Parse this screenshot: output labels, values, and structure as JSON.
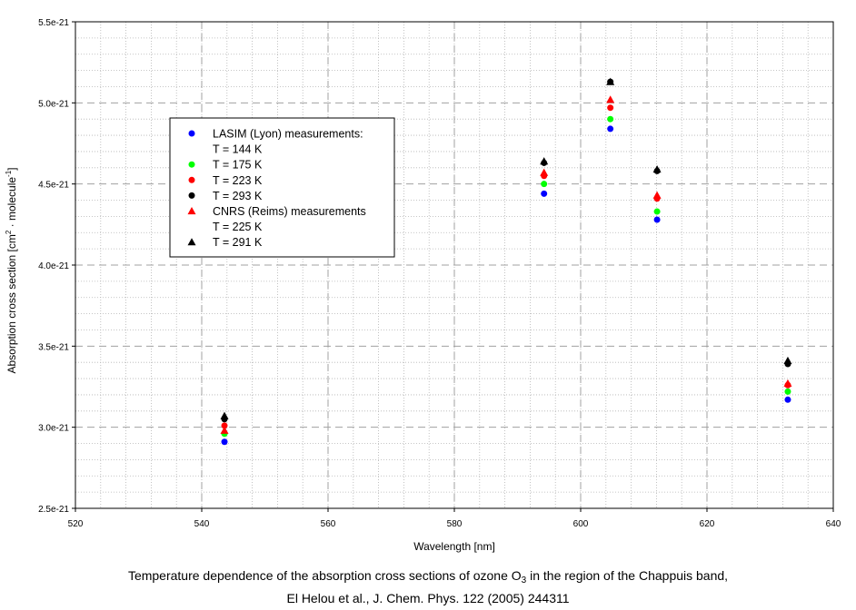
{
  "chart_data": {
    "type": "scatter",
    "title": "",
    "xlabel": "Wavelength [nm]",
    "ylabel_parts": [
      "Absorption cross section [cm",
      "2",
      " · molecule",
      "-1",
      "]"
    ],
    "xlim": [
      520,
      640
    ],
    "ylim": [
      2.5e-21,
      5.5e-21
    ],
    "x_ticks": [
      520,
      540,
      560,
      580,
      600,
      620,
      640
    ],
    "x_tick_labels": [
      "520",
      "540",
      "560",
      "580",
      "600",
      "620",
      "640"
    ],
    "y_ticks": [
      2.5e-21,
      3e-21,
      3.5e-21,
      4e-21,
      4.5e-21,
      5e-21,
      5.5e-21
    ],
    "y_tick_labels": [
      "2.5e-21",
      "3.0e-21",
      "3.5e-21",
      "4.0e-21",
      "4.5e-21",
      "5.0e-21",
      "5.5e-21"
    ],
    "grid": true,
    "legend_position": "upper-left",
    "legend_lines": [
      {
        "text": "LASIM (Lyon) measurements:",
        "series": 0
      },
      {
        "text": "T = 144 K",
        "series": -1
      },
      {
        "text": "T = 175 K",
        "series": 1
      },
      {
        "text": "T = 223 K",
        "series": 2
      },
      {
        "text": "T = 293 K",
        "series": 3
      },
      {
        "text": "CNRS (Reims) measurements",
        "series": 4
      },
      {
        "text": "T = 225 K",
        "series": -1
      },
      {
        "text": "T = 291 K",
        "series": 5
      }
    ],
    "series": [
      {
        "name": "T = 144 K",
        "group": "LASIM (Lyon) measurements",
        "marker": "circle",
        "color": "#0000ff",
        "x": [
          543.6,
          594.2,
          604.7,
          612.1,
          632.8
        ],
        "y": [
          2.91e-21,
          4.44e-21,
          4.84e-21,
          4.28e-21,
          3.17e-21
        ]
      },
      {
        "name": "T = 175 K",
        "group": "LASIM (Lyon) measurements",
        "marker": "circle",
        "color": "#00ff00",
        "x": [
          543.6,
          594.2,
          604.7,
          612.1,
          632.8
        ],
        "y": [
          2.96e-21,
          4.5e-21,
          4.9e-21,
          4.33e-21,
          3.22e-21
        ]
      },
      {
        "name": "T = 223 K",
        "group": "LASIM (Lyon) measurements",
        "marker": "circle",
        "color": "#ff0000",
        "x": [
          543.6,
          594.2,
          604.7,
          612.1,
          632.8
        ],
        "y": [
          3.01e-21,
          4.55e-21,
          4.97e-21,
          4.41e-21,
          3.26e-21
        ]
      },
      {
        "name": "T = 293 K",
        "group": "LASIM (Lyon) measurements",
        "marker": "circle",
        "color": "#000000",
        "x": [
          543.6,
          594.2,
          604.7,
          612.1,
          632.8
        ],
        "y": [
          3.05e-21,
          4.63e-21,
          5.13e-21,
          4.58e-21,
          3.39e-21
        ]
      },
      {
        "name": "T = 225 K",
        "group": "CNRS (Reims) measurements",
        "marker": "triangle",
        "color": "#ff0000",
        "x": [
          543.6,
          594.2,
          604.7,
          612.1,
          632.8
        ],
        "y": [
          2.98e-21,
          4.57e-21,
          5.02e-21,
          4.43e-21,
          3.27e-21
        ]
      },
      {
        "name": "T = 291 K",
        "group": "CNRS (Reims) measurements",
        "marker": "triangle",
        "color": "#000000",
        "x": [
          543.6,
          594.2,
          604.7,
          612.1,
          632.8
        ],
        "y": [
          3.07e-21,
          4.64e-21,
          5.13e-21,
          4.59e-21,
          3.41e-21
        ]
      }
    ]
  },
  "caption": {
    "line1_before": "Temperature dependence of the absorption cross sections of ozone O",
    "line1_sub": "3",
    "line1_after": " in the region of the Chappuis band,",
    "line2": "El Helou et al., J. Chem. Phys. 122  (2005) 244311"
  }
}
